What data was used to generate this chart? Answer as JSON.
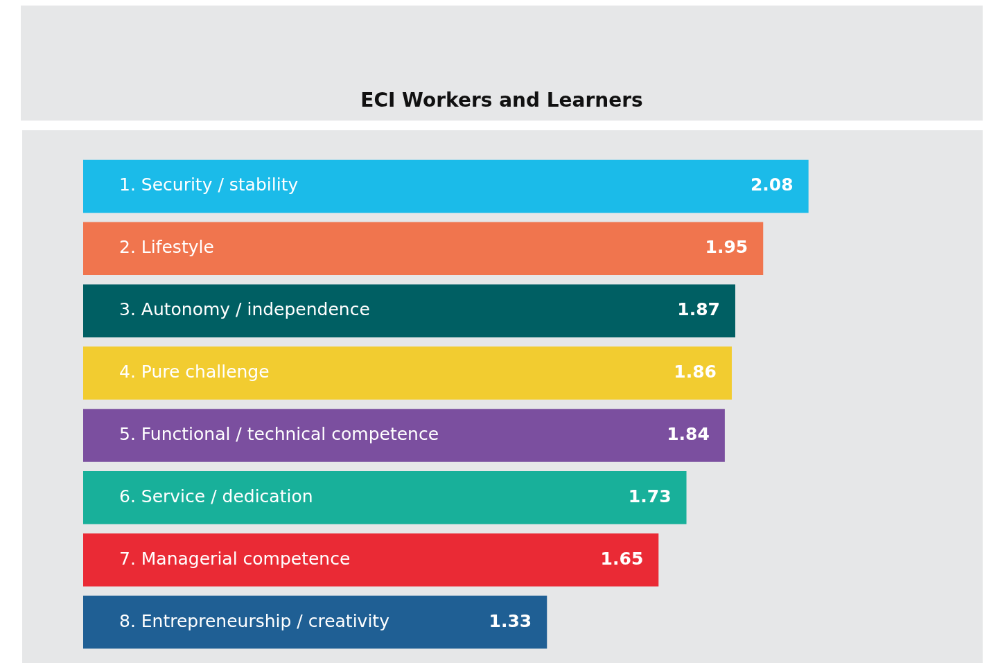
{
  "chart_data": {
    "type": "bar",
    "title": "ECI Workers and Learners",
    "orientation": "horizontal",
    "data_labels": true,
    "categories": [
      "1. Security / stability",
      "2. Lifestyle",
      "3. Autonomy / independence",
      "4. Pure challenge",
      "5. Functional / technical competence",
      "6. Service / dedication",
      "7. Managerial competence",
      "8. Entrepreneurship / creativity"
    ],
    "values": [
      2.08,
      1.95,
      1.87,
      1.86,
      1.84,
      1.73,
      1.65,
      1.33
    ],
    "colors": [
      "#1bbbe9",
      "#f0754e",
      "#005f63",
      "#f2cc30",
      "#7b4f9f",
      "#18b09a",
      "#ea2a35",
      "#1f5f94"
    ]
  }
}
